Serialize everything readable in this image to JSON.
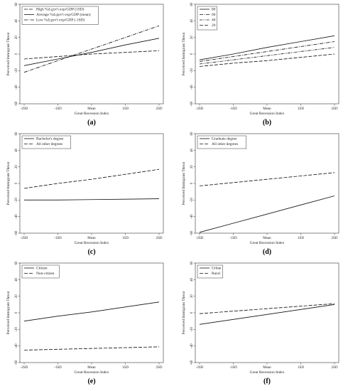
{
  "chart_data": [
    {
      "type": "line",
      "panel_label": "(a)",
      "xlabel": "Great Recession Index",
      "ylabel": "Perceived Immigrant Threat",
      "categories": [
        "-2SD",
        "-1SD",
        "Mean",
        "1SD",
        "2SD"
      ],
      "yticks": [
        "60",
        "40",
        "20",
        "0",
        "-20",
        "-40",
        "-60"
      ],
      "ylim": [
        -60,
        60
      ],
      "legend_position": "top-left",
      "series": [
        {
          "name": "High %Δ gov't exp/GDP (1SD)",
          "dash": "long-dash",
          "values": [
            -6,
            -3,
            0,
            2,
            4
          ]
        },
        {
          "name": "Average %Δ gov't exp/GDP (mean)",
          "dash": "solid",
          "values": [
            -14,
            -6,
            2,
            11,
            19
          ]
        },
        {
          "name": "Low %Δ gov't exp/GDP (-1SD)",
          "dash": "dash-dot",
          "values": [
            -22,
            -8,
            6,
            20,
            34
          ]
        }
      ]
    },
    {
      "type": "line",
      "panel_label": "(b)",
      "xlabel": "Great Recession Index",
      "ylabel": "Perceived Immigrant Threat",
      "categories": [
        "-2SD",
        "-1SD",
        "Mean",
        "1SD",
        "2SD"
      ],
      "yticks": [
        "60",
        "40",
        "20",
        "0",
        "-20",
        "-40",
        "-60"
      ],
      "ylim": [
        -60,
        60
      ],
      "legend_position": "top-left",
      "series": [
        {
          "name": "80",
          "dash": "solid",
          "values": [
            -7,
            0,
            8,
            15,
            22
          ]
        },
        {
          "name": "60",
          "dash": "dash-dot",
          "values": [
            -9,
            -3,
            3,
            9,
            15
          ]
        },
        {
          "name": "40",
          "dash": "dash-dot-dot",
          "values": [
            -12,
            -7,
            -2,
            3,
            8
          ]
        },
        {
          "name": "20",
          "dash": "long-dash",
          "values": [
            -15,
            -11,
            -8,
            -4,
            0
          ]
        }
      ]
    },
    {
      "type": "line",
      "panel_label": "(c)",
      "xlabel": "Great Recession Index",
      "ylabel": "Perceived Immigrant Threat",
      "categories": [
        "-2SD",
        "-1SD",
        "Mean",
        "1SD",
        "2SD"
      ],
      "yticks": [
        "60",
        "40",
        "20",
        "0",
        "-20",
        "-40",
        "-60"
      ],
      "ylim": [
        -60,
        60
      ],
      "legend_position": "top-left",
      "series": [
        {
          "name": "Bachelor's degree",
          "dash": "solid",
          "values": [
            -20,
            -20,
            -19.5,
            -19,
            -18.5
          ]
        },
        {
          "name": "All other degrees",
          "dash": "long-dash",
          "values": [
            -6,
            0,
            5,
            11,
            17
          ]
        }
      ]
    },
    {
      "type": "line",
      "panel_label": "(d)",
      "xlabel": "Great Recession Index",
      "ylabel": "Perceived Immigrant Threat",
      "categories": [
        "-2SD",
        "-1SD",
        "Mean",
        "1SD",
        "2SD"
      ],
      "yticks": [
        "60",
        "40",
        "20",
        "0",
        "-20",
        "-40",
        "-60"
      ],
      "ylim": [
        -60,
        60
      ],
      "legend_position": "top-left",
      "series": [
        {
          "name": "Graduate degree",
          "dash": "solid",
          "values": [
            -59,
            -48,
            -37,
            -26,
            -15
          ]
        },
        {
          "name": "All other degrees",
          "dash": "long-dash",
          "values": [
            -3,
            1,
            5,
            9,
            13
          ]
        }
      ]
    },
    {
      "type": "line",
      "panel_label": "(e)",
      "xlabel": "Great Recession Index",
      "ylabel": "Perceived Immigrant Threat",
      "categories": [
        "-2SD",
        "-1SD",
        "Mean",
        "1SD",
        "2SD"
      ],
      "yticks": [
        "60",
        "40",
        "20",
        "0",
        "-20",
        "-40",
        "-60"
      ],
      "ylim": [
        -60,
        60
      ],
      "legend_position": "top-left",
      "series": [
        {
          "name": "Citizen",
          "dash": "solid",
          "values": [
            -10,
            -4,
            1,
            7,
            13
          ]
        },
        {
          "name": "Non-citizen",
          "dash": "long-dash",
          "values": [
            -45,
            -44,
            -43,
            -42,
            -41
          ]
        }
      ]
    },
    {
      "type": "line",
      "panel_label": "(f)",
      "xlabel": "Great Recession Index",
      "ylabel": "Perceived Immigrant Threat",
      "categories": [
        "-2SD",
        "-1SD",
        "Mean",
        "1SD",
        "2SD"
      ],
      "yticks": [
        "60",
        "40",
        "20",
        "0",
        "-20",
        "-40",
        "-60"
      ],
      "ylim": [
        -60,
        60
      ],
      "legend_position": "top-left",
      "series": [
        {
          "name": "Urban",
          "dash": "solid",
          "values": [
            -14,
            -8,
            -2,
            4,
            10
          ]
        },
        {
          "name": "Rural",
          "dash": "long-dash",
          "values": [
            -1,
            2,
            5,
            8,
            11
          ]
        }
      ]
    }
  ]
}
